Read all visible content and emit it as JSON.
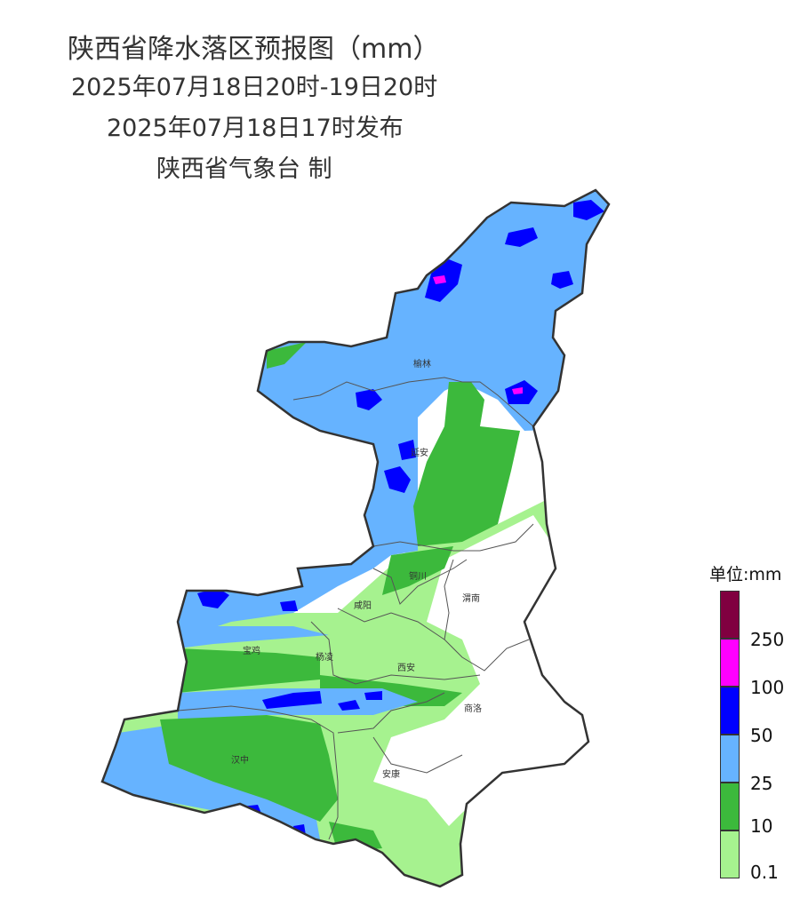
{
  "title": {
    "line1": "陕西省降水落区预报图（mm）",
    "line2": "2025年07月18日20时-19日20时",
    "line3": "2025年07月18日17时发布",
    "line4": "陕西省气象台 制"
  },
  "cities": [
    "榆林",
    "延安",
    "铜川",
    "渭南",
    "咸阳",
    "宝鸡",
    "杨凌",
    "西安",
    "商洛",
    "汉中",
    "安康"
  ],
  "legend": {
    "title": "单位:mm",
    "levels": [
      {
        "label": "",
        "color": "#800040"
      },
      {
        "label": "250",
        "color": "#ff00ff"
      },
      {
        "label": "100",
        "color": "#0000ff"
      },
      {
        "label": "50",
        "color": "#66b3ff"
      },
      {
        "label": "25",
        "color": "#3cb93c"
      },
      {
        "label": "10",
        "color": "#a6f28f"
      },
      {
        "label": "0.1",
        "color": "#a6f28f"
      }
    ]
  },
  "colors": {
    "light_green": "#a6f28f",
    "green": "#3cb93c",
    "light_blue": "#66b3ff",
    "blue": "#0000ff",
    "magenta": "#ff00ff",
    "maroon": "#800040"
  }
}
